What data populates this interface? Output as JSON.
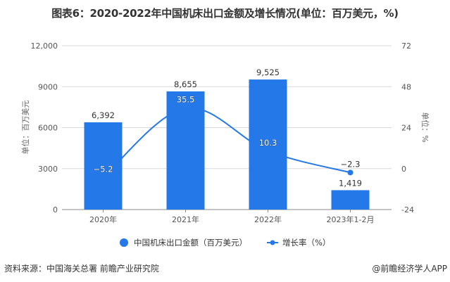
{
  "title": "图表6：2020-2022年中国机床出口金额及增长情况(单位：百万美元，%)",
  "footer": {
    "source": "资料来源：中国海关总署 前瞻产业研究院",
    "credit": "@前瞻经济学人APP"
  },
  "colors": {
    "bar": "#2478e8",
    "line": "#2478e8",
    "grid": "#d9d9d9"
  },
  "chart_data": {
    "type": "bar",
    "title": "图表6：2020-2022年中国机床出口金额及增长情况(单位：百万美元，%)",
    "categories": [
      "2020年",
      "2021年",
      "2022年",
      "2023年1-2月"
    ],
    "series": [
      {
        "name": "中国机床出口金额（百万美元）",
        "type": "bar",
        "axis": "left",
        "values": [
          6392,
          8655,
          9525,
          1419
        ],
        "labels": [
          "6,392",
          "8,655",
          "9,525",
          "1,419"
        ]
      },
      {
        "name": "增长率（%）",
        "type": "line",
        "axis": "right",
        "values": [
          -5.2,
          35.5,
          10.3,
          -2.3
        ],
        "labels": [
          "-5.2",
          "35.5",
          "10.3",
          "-2.3"
        ]
      }
    ],
    "ylabel": "单位：百万美元",
    "y2label": "单位：%",
    "ylim": [
      0,
      12000
    ],
    "y2lim": [
      -24,
      72
    ],
    "yticks": [
      "0",
      "3000",
      "6000",
      "9000",
      "12,000"
    ],
    "y2ticks": [
      "-24",
      "0",
      "24",
      "48",
      "72"
    ],
    "grid": true,
    "legend_position": "bottom"
  }
}
